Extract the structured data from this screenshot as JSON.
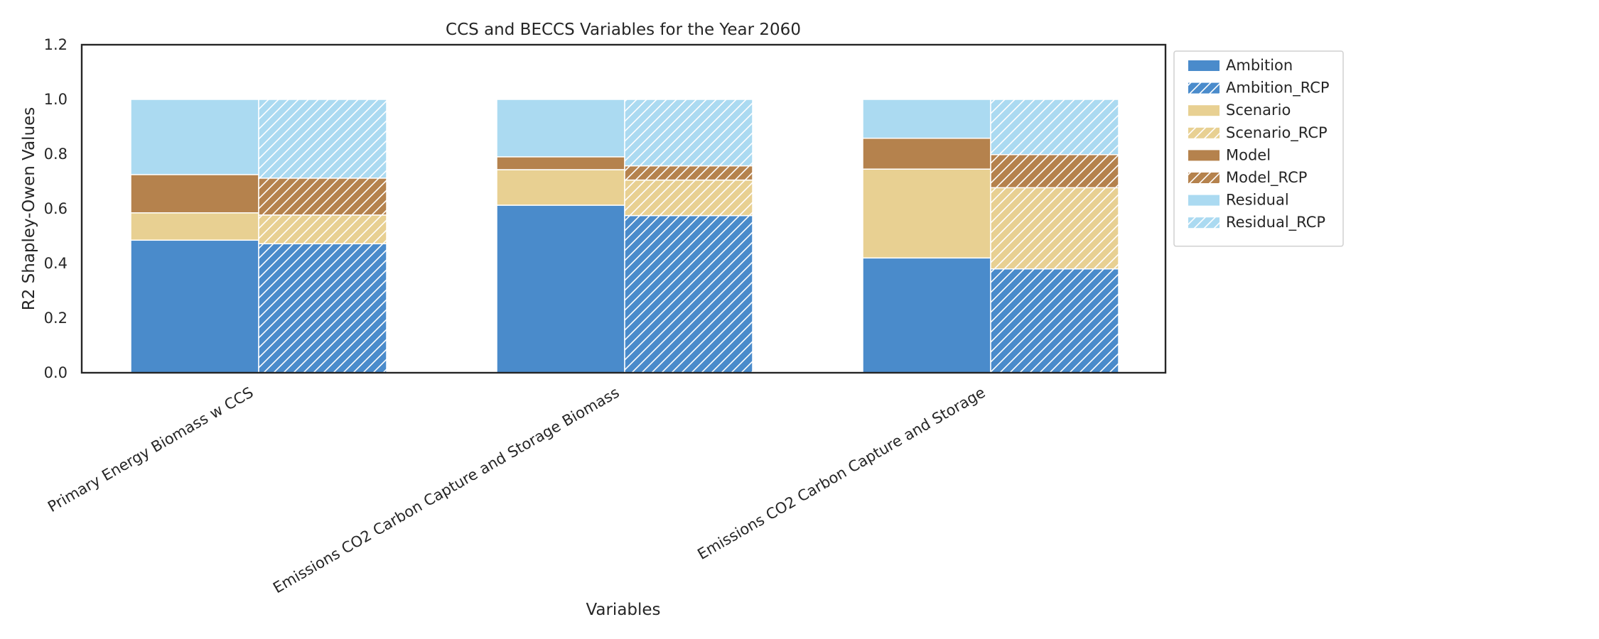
{
  "chart_data": {
    "type": "bar",
    "stacked": true,
    "title": "CCS and BECCS Variables for the Year 2060",
    "xlabel": "Variables",
    "ylabel": "R2 Shapley-Owen Values",
    "ylim": [
      0,
      1.2
    ],
    "yticks": [
      "0.0",
      "0.2",
      "0.4",
      "0.6",
      "0.8",
      "1.0",
      "1.2"
    ],
    "categories": [
      "Primary Energy Biomass w CCS",
      "Emissions CO2 Carbon Capture and Storage Biomass",
      "Emissions CO2 Carbon Capture and Storage"
    ],
    "groups": [
      {
        "key": "base",
        "hatched": false,
        "series": [
          {
            "name": "Ambition",
            "color": "#4a8bcb",
            "values": [
              0.485,
              0.613,
              0.42
            ]
          },
          {
            "name": "Scenario",
            "color": "#e8d092",
            "values": [
              0.1,
              0.13,
              0.325
            ]
          },
          {
            "name": "Model",
            "color": "#b5824d",
            "values": [
              0.14,
              0.047,
              0.113
            ]
          },
          {
            "name": "Residual",
            "color": "#abdaf1",
            "values": [
              0.275,
              0.21,
              0.142
            ]
          }
        ]
      },
      {
        "key": "rcp",
        "hatched": true,
        "series": [
          {
            "name": "Ambition_RCP",
            "color": "#4a8bcb",
            "values": [
              0.472,
              0.575,
              0.38
            ]
          },
          {
            "name": "Scenario_RCP",
            "color": "#e8d092",
            "values": [
              0.105,
              0.13,
              0.297
            ]
          },
          {
            "name": "Model_RCP",
            "color": "#b5824d",
            "values": [
              0.135,
              0.052,
              0.121
            ]
          },
          {
            "name": "Residual_RCP",
            "color": "#abdaf1",
            "values": [
              0.288,
              0.243,
              0.202
            ]
          }
        ]
      }
    ],
    "legend": {
      "placement": "outside-upper-right",
      "entries": [
        "Ambition",
        "Ambition_RCP",
        "Scenario",
        "Scenario_RCP",
        "Model",
        "Model_RCP",
        "Residual",
        "Residual_RCP"
      ]
    },
    "grid": false
  }
}
